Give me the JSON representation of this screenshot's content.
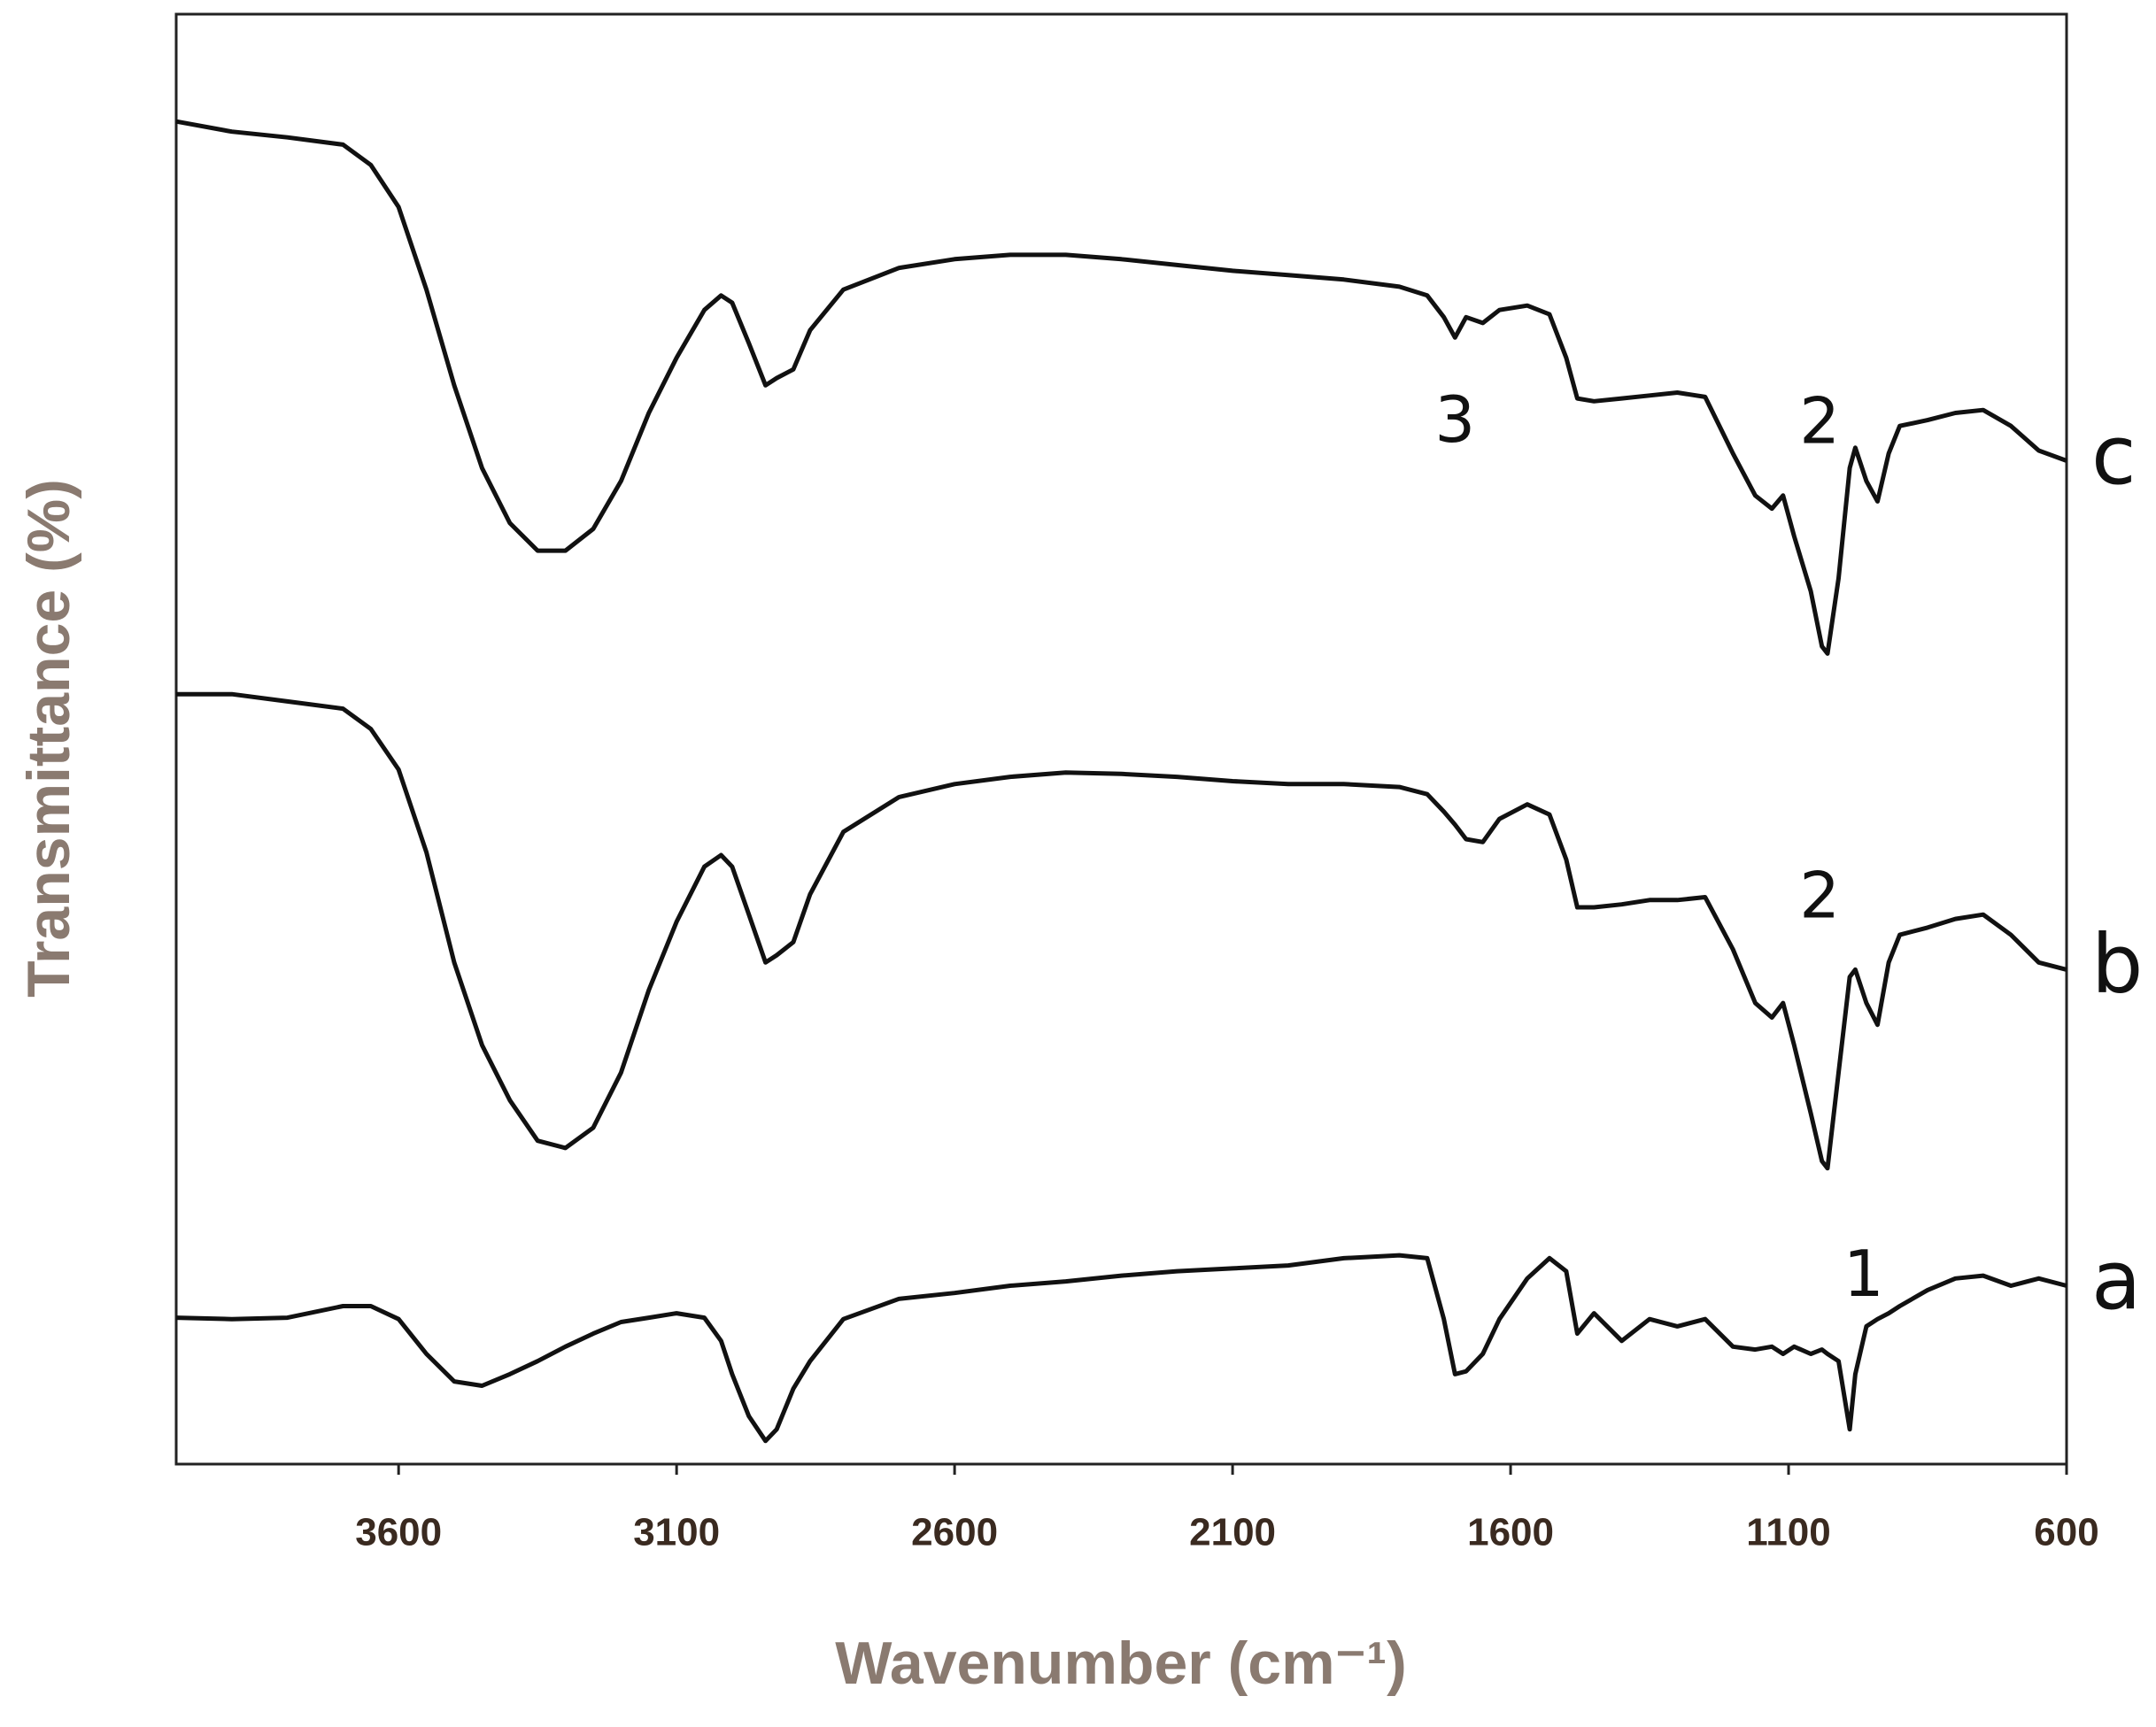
{
  "chart_data": {
    "type": "line",
    "x_label": "Wavenumber (cm⁻¹)",
    "y_label": "Transmittance (%)",
    "xlim": [
      4000,
      600
    ],
    "xticks": [
      3600,
      3100,
      2600,
      2100,
      1600,
      1100,
      600
    ],
    "ylim": [
      0,
      100
    ],
    "color": "#111111",
    "x": [
      4000,
      3900,
      3800,
      3700,
      3650,
      3600,
      3550,
      3500,
      3450,
      3400,
      3350,
      3300,
      3250,
      3200,
      3150,
      3100,
      3050,
      3020,
      3000,
      2970,
      2940,
      2920,
      2890,
      2860,
      2800,
      2700,
      2600,
      2500,
      2400,
      2300,
      2200,
      2100,
      2000,
      1900,
      1800,
      1750,
      1720,
      1700,
      1680,
      1650,
      1620,
      1570,
      1530,
      1500,
      1480,
      1450,
      1400,
      1350,
      1300,
      1250,
      1200,
      1160,
      1130,
      1110,
      1090,
      1060,
      1040,
      1030,
      1010,
      990,
      980,
      960,
      940,
      920,
      900,
      850,
      800,
      750,
      700,
      650,
      600
    ],
    "series": [
      {
        "name": "a",
        "color": "#111111",
        "values": [
          10.1,
          10.0,
          10.1,
          10.9,
          10.9,
          10.0,
          7.6,
          5.7,
          5.4,
          6.2,
          7.1,
          8.1,
          9.0,
          9.8,
          10.1,
          10.4,
          10.1,
          8.5,
          6.2,
          3.3,
          1.6,
          2.4,
          5.2,
          7.1,
          10.0,
          11.4,
          11.8,
          12.3,
          12.6,
          13.0,
          13.3,
          13.5,
          13.7,
          14.2,
          14.4,
          14.2,
          10.0,
          6.2,
          6.4,
          7.6,
          10.0,
          12.8,
          14.2,
          13.3,
          9.0,
          10.4,
          8.5,
          10.0,
          9.5,
          10.0,
          8.1,
          7.9,
          8.1,
          7.6,
          8.1,
          7.6,
          7.9,
          7.6,
          7.1,
          2.4,
          6.2,
          9.5,
          10.0,
          10.4,
          10.9,
          12.0,
          12.8,
          13.0,
          12.3,
          12.8,
          12.3
        ]
      },
      {
        "name": "b",
        "color": "#111111",
        "values": [
          53.1,
          53.1,
          52.6,
          52.1,
          50.7,
          47.9,
          42.2,
          34.6,
          28.9,
          25.1,
          22.3,
          21.8,
          23.2,
          27.0,
          32.7,
          37.4,
          41.2,
          42.0,
          41.2,
          37.9,
          34.6,
          35.1,
          36.0,
          39.3,
          43.6,
          46.0,
          46.9,
          47.4,
          47.7,
          47.6,
          47.4,
          47.1,
          46.9,
          46.9,
          46.7,
          46.2,
          45.0,
          44.1,
          43.1,
          42.9,
          44.5,
          45.5,
          44.8,
          41.7,
          38.4,
          38.4,
          38.6,
          38.9,
          38.9,
          39.1,
          35.5,
          31.8,
          30.8,
          31.8,
          28.9,
          24.2,
          20.9,
          20.4,
          27.0,
          33.6,
          34.1,
          31.8,
          30.3,
          34.6,
          36.5,
          37.0,
          37.6,
          37.9,
          36.5,
          34.6,
          34.1
        ]
      },
      {
        "name": "c",
        "color": "#111111",
        "values": [
          92.6,
          91.9,
          91.5,
          91.0,
          89.6,
          86.7,
          81.0,
          74.4,
          68.7,
          64.9,
          63.0,
          63.0,
          64.5,
          67.8,
          72.5,
          76.3,
          79.6,
          80.6,
          80.1,
          77.3,
          74.4,
          74.9,
          75.5,
          78.2,
          81.0,
          82.5,
          83.1,
          83.4,
          83.4,
          83.1,
          82.7,
          82.3,
          82.0,
          81.7,
          81.2,
          80.6,
          79.1,
          77.7,
          79.1,
          78.7,
          79.6,
          79.9,
          79.3,
          76.3,
          73.5,
          73.3,
          73.5,
          73.7,
          73.9,
          73.6,
          69.7,
          66.8,
          65.9,
          66.8,
          64.0,
          60.2,
          56.4,
          55.9,
          61.1,
          68.7,
          70.1,
          67.8,
          66.4,
          69.7,
          71.6,
          72.0,
          72.5,
          72.7,
          71.6,
          69.9,
          69.2
        ]
      }
    ],
    "annotations": [
      {
        "text": "3",
        "x": 1700,
        "y": 71.7
      },
      {
        "text": "2",
        "x": 1044,
        "y": 71.6
      },
      {
        "text": "2",
        "x": 1044,
        "y": 38.9
      },
      {
        "text": "1",
        "x": 965,
        "y": 12.8
      }
    ]
  }
}
